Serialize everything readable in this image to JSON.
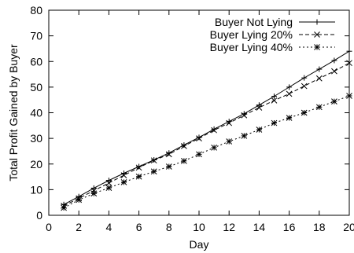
{
  "chart_data": {
    "type": "line",
    "title": "",
    "xlabel": "Day",
    "ylabel": "Total Profit Gained by Buyer",
    "xlim": [
      0,
      20
    ],
    "ylim": [
      0,
      80
    ],
    "xticks": [
      "0",
      "2",
      "4",
      "6",
      "8",
      "10",
      "12",
      "14",
      "16",
      "18",
      "20"
    ],
    "yticks": [
      "0",
      "10",
      "20",
      "30",
      "40",
      "50",
      "60",
      "70",
      "80"
    ],
    "grid": false,
    "legend_position": "top-right",
    "x": [
      1,
      2,
      3,
      4,
      5,
      6,
      7,
      8,
      9,
      10,
      11,
      12,
      13,
      14,
      15,
      16,
      17,
      18,
      19,
      20
    ],
    "series": [
      {
        "name": "Buyer Not Lying",
        "marker": "plus",
        "line": "solid",
        "values": [
          4.2,
          7.3,
          10.6,
          13.6,
          16.4,
          19.0,
          21.6,
          24.3,
          27.4,
          30.4,
          33.6,
          36.6,
          39.6,
          43.0,
          46.4,
          50.0,
          53.6,
          57.0,
          60.4,
          64.0
        ]
      },
      {
        "name": "Buyer Lying 20%",
        "marker": "x",
        "line": "dashed",
        "values": [
          3.7,
          6.6,
          9.6,
          12.6,
          15.6,
          18.6,
          21.4,
          23.8,
          27.0,
          30.0,
          33.2,
          36.0,
          39.0,
          42.0,
          44.8,
          47.4,
          50.4,
          53.4,
          56.2,
          59.4
        ]
      },
      {
        "name": "Buyer Lying 40%",
        "marker": "star",
        "line": "dotted",
        "values": [
          2.9,
          6.0,
          8.5,
          10.7,
          12.9,
          15.1,
          17.1,
          19.0,
          21.2,
          23.8,
          26.4,
          28.8,
          31.0,
          33.4,
          36.0,
          38.0,
          40.0,
          42.2,
          44.4,
          46.6
        ]
      }
    ]
  }
}
